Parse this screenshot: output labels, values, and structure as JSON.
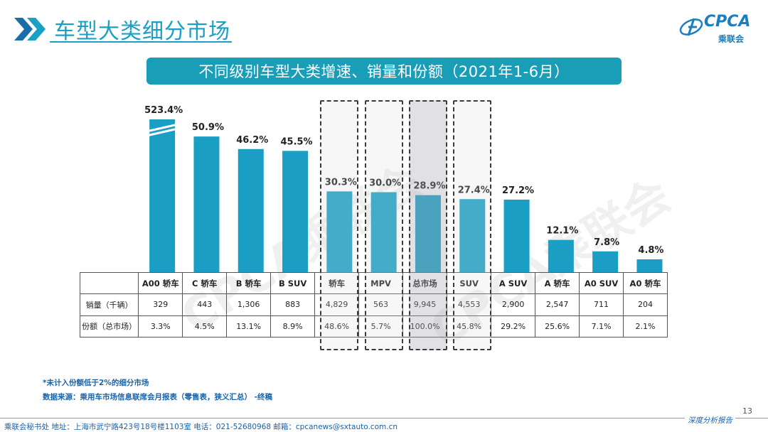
{
  "header": {
    "title": "车型大类细分市场"
  },
  "logo": {
    "text": "CPCA",
    "sub": "乘联会",
    "brand_color": "#1a7fc0"
  },
  "banner": {
    "title": "不同级别车型大类增速、销量和份额（2021年1-6月）"
  },
  "watermark": {
    "text": "CPCA乘联会"
  },
  "chart_data": {
    "type": "bar",
    "categories": [
      "A00 轿车",
      "C 轿车",
      "B 轿车",
      "B SUV",
      "轿车",
      "MPV",
      "总市场",
      "SUV",
      "A SUV",
      "A 轿车",
      "A0 SUV",
      "A0 轿车"
    ],
    "values": [
      523.4,
      50.9,
      46.2,
      45.5,
      30.3,
      30.0,
      28.9,
      27.4,
      27.2,
      12.1,
      7.8,
      4.8
    ],
    "value_labels": [
      "523.4%",
      "50.9%",
      "46.2%",
      "45.5%",
      "30.3%",
      "30.0%",
      "28.9%",
      "27.4%",
      "27.2%",
      "12.1%",
      "7.8%",
      "4.8%"
    ],
    "unit": "%",
    "broken_axis_bars": [
      0
    ],
    "bar_color": "#1a9ec4",
    "highlighted": [
      4,
      5,
      6,
      7
    ],
    "highlighted_dark": [
      6
    ],
    "table": {
      "row_labels": [
        "销量（千辆）",
        "份额（总市场）"
      ],
      "sales": [
        "329",
        "443",
        "1,306",
        "883",
        "4,829",
        "563",
        "9,945",
        "4,553",
        "2,900",
        "2,547",
        "711",
        "204"
      ],
      "share": [
        "3.3%",
        "4.5%",
        "13.1%",
        "8.9%",
        "48.6%",
        "5.7%",
        "100.0%",
        "45.8%",
        "29.2%",
        "25.6%",
        "7.1%",
        "2.1%"
      ]
    }
  },
  "notes": {
    "note1": "*未计入份额低于2%的细分市场",
    "note2": "数据来源：乘用车市场信息联席会月报表（零售表，狭义汇总）  -终稿"
  },
  "footer": {
    "text": "乘联会秘书处   地址：上海市武宁路423号18号楼1103室   电话：021-52680968    邮箱：cpcanews@sxtauto.com.cn",
    "page": "13",
    "tag": "深度分析报告"
  }
}
